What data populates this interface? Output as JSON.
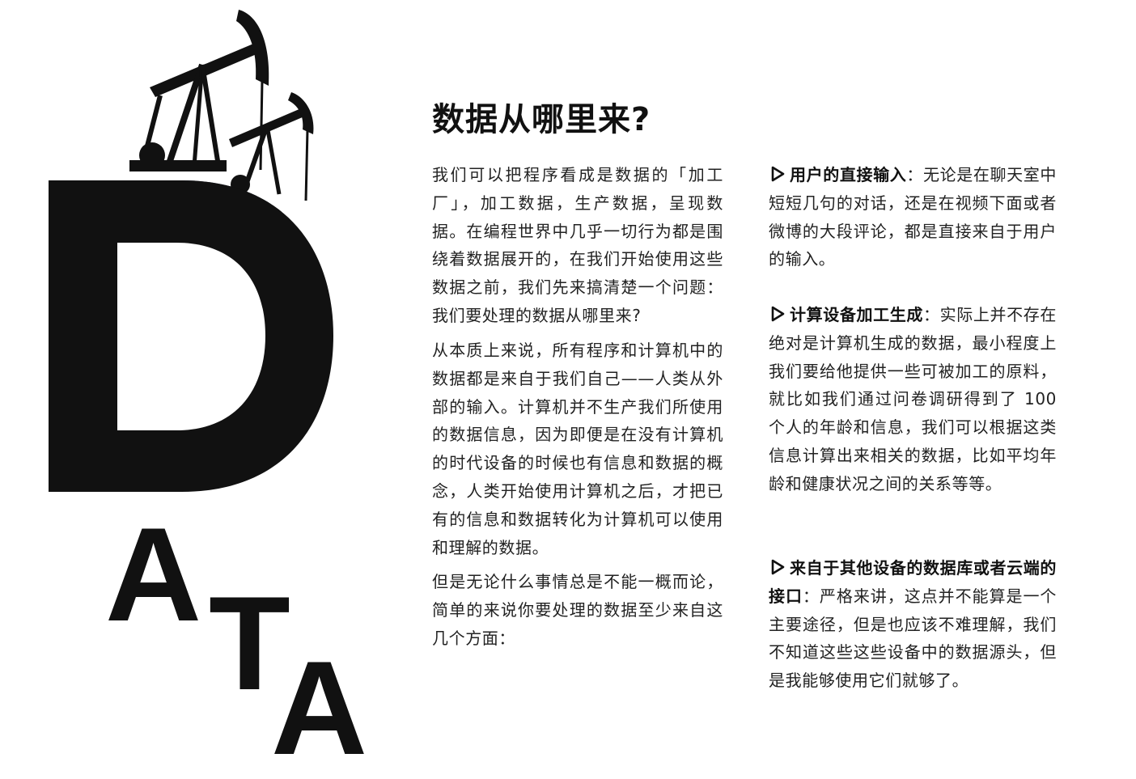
{
  "hero": {
    "letters": [
      "D",
      "A",
      "T",
      "A"
    ],
    "image": "oil-pump-jacks-silhouette"
  },
  "title": "数据从哪里来?",
  "paragraphs": [
    "我们可以把程序看成是数据的「加工厂」，加工数据，生产数据，呈现数据。在编程世界中几乎一切行为都是围绕着数据展开的，在我们开始使用这些数据之前，我们先来搞清楚一个问题：我们要处理的数据从哪里来?",
    "从本质上来说，所有程序和计算机中的数据都是来自于我们自己——人类从外部的输入。计算机并不生产我们所使用的数据信息，因为即便是在没有计算机的时代设备的时候也有信息和数据的概念，人类开始使用计算机之后，才把已有的信息和数据转化为计算机可以使用和理解的数据。",
    "但是无论什么事情总是不能一概而论，简单的来说你要处理的数据至少来自这几个方面："
  ],
  "bullets": [
    {
      "icon": "triangle-right-icon",
      "head": "用户的直接输入",
      "sep": "：",
      "body": "无论是在聊天室中短短几句的对话，还是在视频下面或者微博的大段评论，都是直接来自于用户的输入。"
    },
    {
      "icon": "triangle-right-icon",
      "head": "计算设备加工生成",
      "sep": "：",
      "body": "实际上并不存在绝对是计算机生成的数据，最小程度上我们要给他提供一些可被加工的原料，就比如我们通过问卷调研得到了 100 个人的年龄和信息，我们可以根据这类信息计算出来相关的数据，比如平均年龄和健康状况之间的关系等等。"
    },
    {
      "icon": "triangle-right-icon",
      "head": "来自于其他设备的数据库或者云端的接口",
      "sep": "：",
      "body": "严格来讲，这点并不能算是一个主要途径，但是也应该不难理解，我们不知道这些这些设备中的数据源头，但是我能够使用它们就够了。"
    }
  ],
  "colors": {
    "ink": "#111111",
    "text": "#222222",
    "sky_top": "#1d2640",
    "sky_bottom": "#8f9ab6"
  }
}
